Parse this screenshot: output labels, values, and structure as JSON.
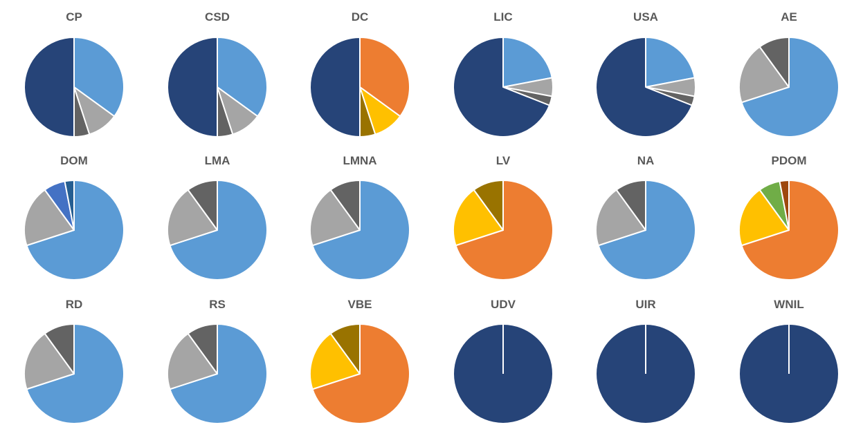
{
  "colors": {
    "light_blue": "#5b9bd5",
    "dark_navy": "#264478",
    "light_gray": "#a5a5a5",
    "dark_gray": "#636363",
    "orange": "#ed7d31",
    "gold": "#ffc000",
    "olive": "#997300",
    "mid_blue": "#4472c4",
    "steel_blue": "#255e91",
    "green": "#70ad47",
    "brown": "#9e480e",
    "slice_border": "#ffffff"
  },
  "chart_data": [
    {
      "type": "pie",
      "title": "CP",
      "values": [
        35,
        10,
        5,
        50
      ],
      "colors": [
        "light_blue",
        "light_gray",
        "dark_gray",
        "dark_navy"
      ]
    },
    {
      "type": "pie",
      "title": "CSD",
      "values": [
        35,
        10,
        5,
        50
      ],
      "colors": [
        "light_blue",
        "light_gray",
        "dark_gray",
        "dark_navy"
      ]
    },
    {
      "type": "pie",
      "title": "DC",
      "values": [
        35,
        10,
        5,
        50
      ],
      "colors": [
        "orange",
        "gold",
        "olive",
        "dark_navy"
      ]
    },
    {
      "type": "pie",
      "title": "LIC",
      "values": [
        22,
        6,
        3,
        69
      ],
      "colors": [
        "light_blue",
        "light_gray",
        "dark_gray",
        "dark_navy"
      ]
    },
    {
      "type": "pie",
      "title": "USA",
      "values": [
        22,
        6,
        3,
        69
      ],
      "colors": [
        "light_blue",
        "light_gray",
        "dark_gray",
        "dark_navy"
      ]
    },
    {
      "type": "pie",
      "title": "AE",
      "values": [
        70,
        20,
        10
      ],
      "colors": [
        "light_blue",
        "light_gray",
        "dark_gray"
      ]
    },
    {
      "type": "pie",
      "title": "DOM",
      "values": [
        70,
        20,
        7,
        3
      ],
      "colors": [
        "light_blue",
        "light_gray",
        "mid_blue",
        "steel_blue"
      ]
    },
    {
      "type": "pie",
      "title": "LMA",
      "values": [
        70,
        20,
        10
      ],
      "colors": [
        "light_blue",
        "light_gray",
        "dark_gray"
      ]
    },
    {
      "type": "pie",
      "title": "LMNA",
      "values": [
        70,
        20,
        10
      ],
      "colors": [
        "light_blue",
        "light_gray",
        "dark_gray"
      ]
    },
    {
      "type": "pie",
      "title": "LV",
      "values": [
        70,
        20,
        10
      ],
      "colors": [
        "orange",
        "gold",
        "olive"
      ]
    },
    {
      "type": "pie",
      "title": "NA",
      "values": [
        70,
        20,
        10
      ],
      "colors": [
        "light_blue",
        "light_gray",
        "dark_gray"
      ]
    },
    {
      "type": "pie",
      "title": "PDOM",
      "values": [
        70,
        20,
        7,
        3
      ],
      "colors": [
        "orange",
        "gold",
        "green",
        "brown"
      ]
    },
    {
      "type": "pie",
      "title": "RD",
      "values": [
        70,
        20,
        10
      ],
      "colors": [
        "light_blue",
        "light_gray",
        "dark_gray"
      ]
    },
    {
      "type": "pie",
      "title": "RS",
      "values": [
        70,
        20,
        10
      ],
      "colors": [
        "light_blue",
        "light_gray",
        "dark_gray"
      ]
    },
    {
      "type": "pie",
      "title": "VBE",
      "values": [
        70,
        20,
        10
      ],
      "colors": [
        "orange",
        "gold",
        "olive"
      ]
    },
    {
      "type": "pie",
      "title": "UDV",
      "values": [
        100
      ],
      "colors": [
        "dark_navy"
      ]
    },
    {
      "type": "pie",
      "title": "UIR",
      "values": [
        100
      ],
      "colors": [
        "dark_navy"
      ]
    },
    {
      "type": "pie",
      "title": "WNIL",
      "values": [
        100
      ],
      "colors": [
        "dark_navy"
      ]
    }
  ]
}
